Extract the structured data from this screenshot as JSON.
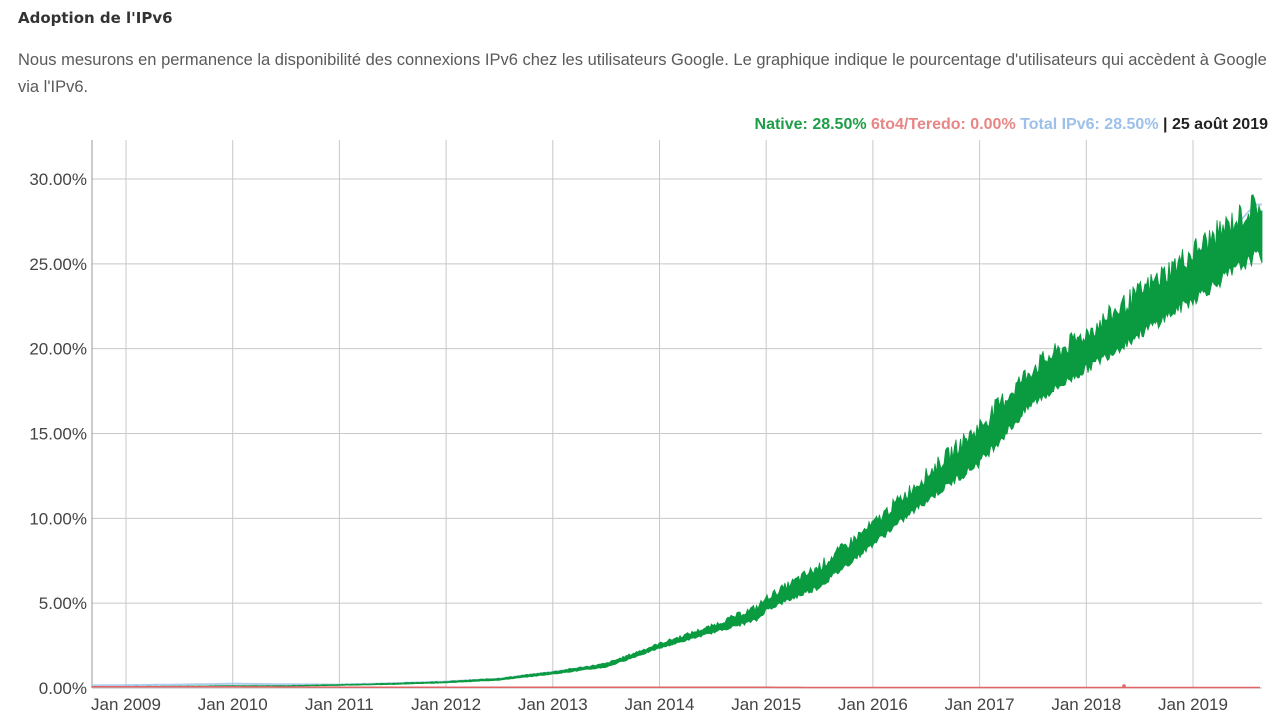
{
  "header": {
    "title": "Adoption de l'IPv6",
    "description": "Nous mesurons en permanence la disponibilité des connexions IPv6 chez les utilisateurs Google. Le graphique indique le pourcentage d'utilisateurs qui accèdent à Google via l'IPv6."
  },
  "legend": {
    "native": "Native: 28.50%",
    "sixto4": "6to4/Teredo: 0.00%",
    "total": "Total IPv6: 28.50%",
    "date": "| 25 août 2019"
  },
  "colors": {
    "native": "#0a9a40",
    "sixto4": "#e06666",
    "total": "#9cc0ea",
    "grid": "#c8c8c8"
  },
  "chart_data": {
    "type": "area",
    "title": "Adoption de l'IPv6",
    "xlabel": "",
    "ylabel": "",
    "ylim": [
      0,
      30
    ],
    "grid": true,
    "legend_position": "top-right",
    "y_ticks": [
      "0.00%",
      "5.00%",
      "10.00%",
      "15.00%",
      "20.00%",
      "25.00%",
      "30.00%"
    ],
    "x_ticks": [
      "Jan 2009",
      "Jan 2010",
      "Jan 2011",
      "Jan 2012",
      "Jan 2013",
      "Jan 2014",
      "Jan 2015",
      "Jan 2016",
      "Jan 2017",
      "Jan 2018",
      "Jan 2019"
    ],
    "x": [
      "2008-09",
      "2009-01",
      "2009-07",
      "2010-01",
      "2010-07",
      "2011-01",
      "2011-07",
      "2012-01",
      "2012-07",
      "2013-01",
      "2013-07",
      "2014-01",
      "2014-07",
      "2014-12",
      "2015-01",
      "2015-07",
      "2016-01",
      "2016-07",
      "2017-01",
      "2017-07",
      "2018-01",
      "2018-07",
      "2019-01",
      "2019-08"
    ],
    "series": [
      {
        "name": "Native",
        "color": "#0a9a40",
        "values_low": [
          0.05,
          0.06,
          0.08,
          0.1,
          0.1,
          0.15,
          0.2,
          0.3,
          0.45,
          0.8,
          1.2,
          2.3,
          3.2,
          3.9,
          4.5,
          5.8,
          8.3,
          10.8,
          13.0,
          16.5,
          18.5,
          20.5,
          22.5,
          25.0
        ],
        "values_high": [
          0.08,
          0.1,
          0.12,
          0.15,
          0.15,
          0.22,
          0.3,
          0.4,
          0.6,
          1.0,
          1.5,
          2.7,
          3.8,
          5.0,
          5.5,
          7.5,
          10.0,
          13.0,
          16.0,
          19.5,
          21.5,
          24.0,
          26.5,
          29.3
        ]
      },
      {
        "name": "6to4/Teredo",
        "color": "#e06666",
        "values": [
          0.05,
          0.05,
          0.05,
          0.04,
          0.03,
          0.02,
          0.01,
          0.01,
          0.01,
          0.01,
          0.01,
          0.01,
          0.01,
          0.01,
          0.01,
          0.0,
          0.0,
          0.0,
          0.0,
          0.0,
          0.0,
          0.0,
          0.0,
          0.0
        ]
      },
      {
        "name": "Total IPv6",
        "color": "#9cc0ea",
        "values": [
          0.15,
          0.17,
          0.2,
          0.25,
          0.22,
          0.2,
          0.28,
          0.38,
          0.55,
          0.95,
          1.4,
          2.5,
          3.5,
          4.5,
          5.0,
          6.6,
          9.2,
          11.9,
          14.5,
          18.0,
          20.0,
          22.3,
          24.5,
          28.5
        ]
      }
    ],
    "annotations": [
      "Native: 28.50%",
      "6to4/Teredo: 0.00%",
      "Total IPv6: 28.50%",
      "25 août 2019"
    ]
  }
}
